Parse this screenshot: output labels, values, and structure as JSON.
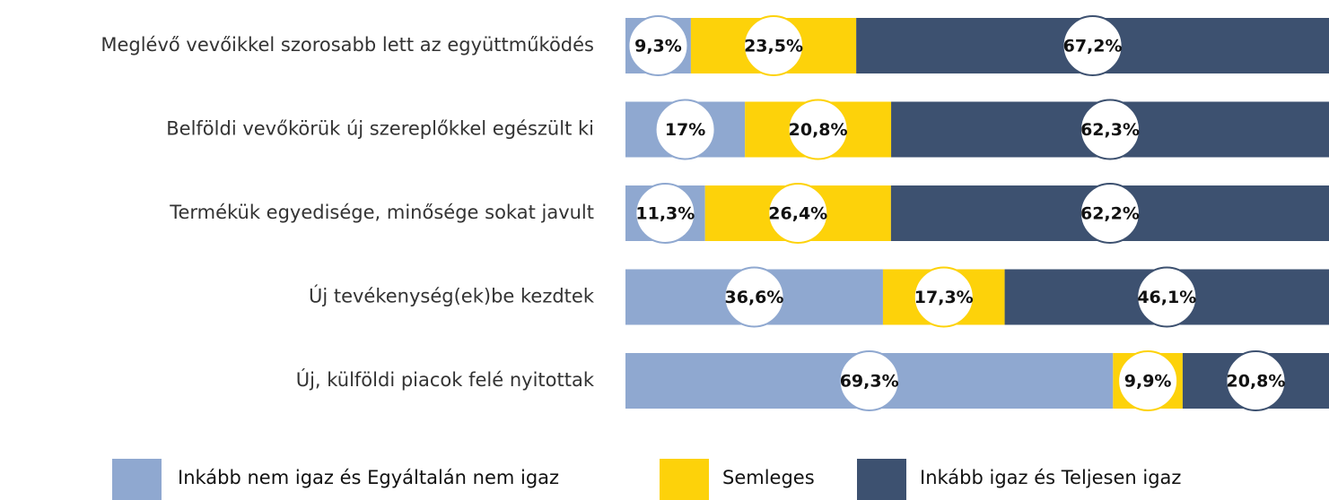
{
  "chart_data": {
    "type": "stacked-bar",
    "categories": [
      "Meglévő vevőikkel szorosabb lett az együttműködés",
      "Belföldi vevőkörük új szereplőkkel egészült ki",
      "Termékük egyedisége, minősége sokat javult",
      "Új tevékenység(ek)be kezdtek",
      "Új, külföldi piacok felé nyitottak"
    ],
    "series": [
      {
        "name": "Inkább nem igaz és Egyáltalán nem igaz",
        "color": "#8fa8d0",
        "values": [
          9.3,
          17,
          11.3,
          36.6,
          69.3
        ],
        "value_labels": [
          "9,3%",
          "17%",
          "11,3%",
          "36,6%",
          "69,3%"
        ]
      },
      {
        "name": "Semleges",
        "color": "#fdd20a",
        "values": [
          23.5,
          20.8,
          26.4,
          17.3,
          9.9
        ],
        "value_labels": [
          "23,5%",
          "20,8%",
          "26,4%",
          "17,3%",
          "9,9%"
        ]
      },
      {
        "name": "Inkább igaz és Teljesen igaz",
        "color": "#3d5170",
        "values": [
          67.2,
          62.3,
          62.2,
          46.1,
          20.8
        ],
        "value_labels": [
          "67,2%",
          "62,3%",
          "62,2%",
          "46,1%",
          "20,8%"
        ]
      }
    ]
  }
}
